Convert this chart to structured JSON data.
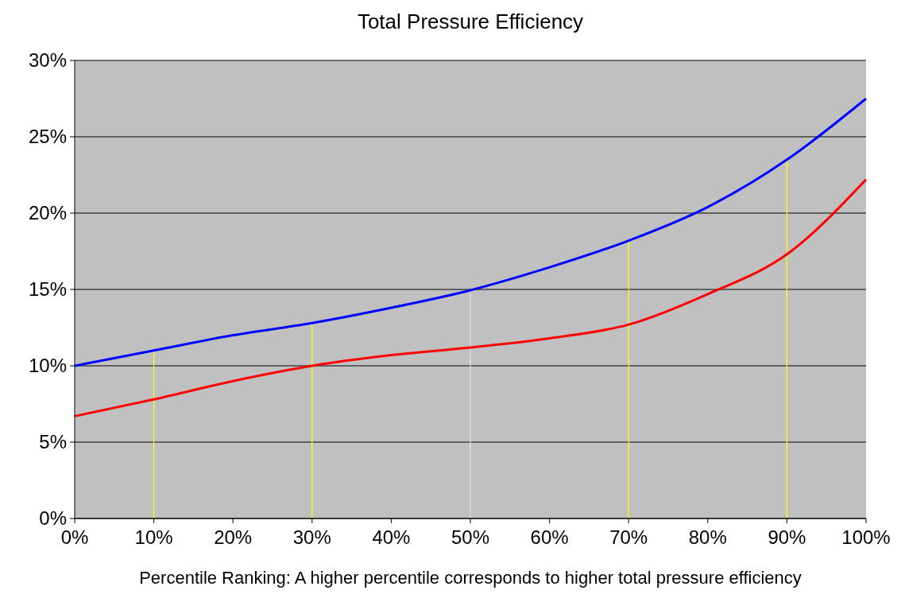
{
  "chart_data": {
    "type": "line",
    "title": "Total Pressure Efficiency",
    "xlabel": "Percentile Ranking: A higher percentile corresponds to higher total pressure efficiency",
    "x": [
      0,
      10,
      20,
      30,
      40,
      50,
      60,
      70,
      80,
      90,
      100
    ],
    "series": [
      {
        "color": "#0000ff",
        "values": [
          10.0,
          11.0,
          12.0,
          12.8,
          13.8,
          14.95,
          16.45,
          18.2,
          20.4,
          23.5,
          27.5
        ]
      },
      {
        "color": "#ff0000",
        "values": [
          6.7,
          7.8,
          9.0,
          10.0,
          10.7,
          11.2,
          11.8,
          12.7,
          14.7,
          17.3,
          22.2
        ]
      }
    ],
    "xlim": [
      0,
      100
    ],
    "ylim": [
      0,
      30
    ],
    "xticks": [
      {
        "value": 0,
        "label": "0%"
      },
      {
        "value": 10,
        "label": "10%"
      },
      {
        "value": 20,
        "label": "20%"
      },
      {
        "value": 30,
        "label": "30%"
      },
      {
        "value": 40,
        "label": "40%"
      },
      {
        "value": 50,
        "label": "50%"
      },
      {
        "value": 60,
        "label": "60%"
      },
      {
        "value": 70,
        "label": "70%"
      },
      {
        "value": 80,
        "label": "80%"
      },
      {
        "value": 90,
        "label": "90%"
      },
      {
        "value": 100,
        "label": "100%"
      }
    ],
    "yticks": [
      {
        "value": 0,
        "label": "0%"
      },
      {
        "value": 5,
        "label": "5%"
      },
      {
        "value": 10,
        "label": "10%"
      },
      {
        "value": 15,
        "label": "15%"
      },
      {
        "value": 20,
        "label": "20%"
      },
      {
        "value": 25,
        "label": "25%"
      },
      {
        "value": 30,
        "label": "30%"
      }
    ],
    "ref_lines": [
      {
        "axis": "x",
        "value": 10,
        "color": "#ffff00"
      },
      {
        "axis": "x",
        "value": 30,
        "color": "#ffff00"
      },
      {
        "axis": "x",
        "value": 50,
        "color": "#e0e0e0"
      },
      {
        "axis": "x",
        "value": 70,
        "color": "#ffff00"
      },
      {
        "axis": "x",
        "value": 90,
        "color": "#ffff00"
      }
    ],
    "grid": "y",
    "marker": "none",
    "line_style": "solid"
  }
}
